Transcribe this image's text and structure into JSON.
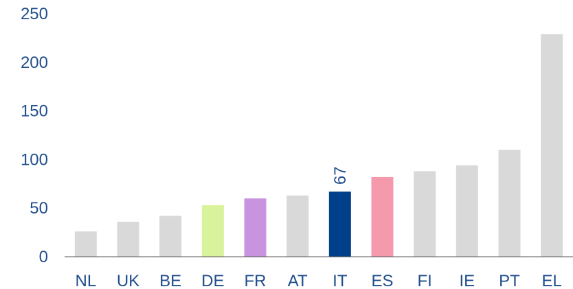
{
  "chart_data": {
    "type": "bar",
    "categories": [
      "NL",
      "UK",
      "BE",
      "DE",
      "FR",
      "AT",
      "IT",
      "ES",
      "FI",
      "IE",
      "PT",
      "EL"
    ],
    "values": [
      26,
      36,
      42,
      53,
      60,
      63,
      67,
      82,
      88,
      94,
      110,
      229
    ],
    "bar_colors": [
      "#d9d9d9",
      "#d9d9d9",
      "#d9d9d9",
      "#d9f29c",
      "#c894e0",
      "#d9d9d9",
      "#003f8a",
      "#f59aad",
      "#d9d9d9",
      "#d9d9d9",
      "#d9d9d9",
      "#d9d9d9"
    ],
    "ylim": [
      0,
      250
    ],
    "yticks": [
      0,
      50,
      100,
      150,
      200,
      250
    ],
    "data_labels": [
      {
        "category": "IT",
        "text": "67"
      }
    ],
    "grid": false,
    "text_color": "#1f4e8c",
    "axis_color": "#555555"
  }
}
